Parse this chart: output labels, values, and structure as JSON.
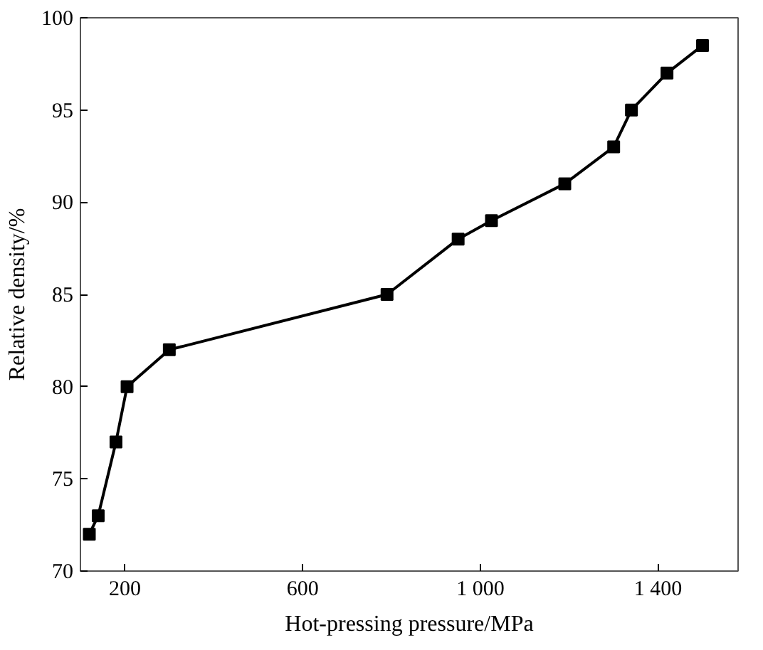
{
  "chart_data": {
    "type": "line",
    "xlabel": "Hot-pressing pressure/MPa",
    "ylabel": "Relative density/%",
    "x": [
      120,
      140,
      180,
      205,
      300,
      790,
      950,
      1025,
      1190,
      1300,
      1340,
      1420,
      1500
    ],
    "series": [
      {
        "color": "#000000",
        "values": [
          72,
          73,
          77,
          80,
          82,
          85,
          88,
          89,
          91,
          93,
          95,
          97,
          98.5
        ]
      }
    ],
    "xlim": [
      100,
      1580
    ],
    "xticks": [
      200,
      600,
      {
        "value": 1000,
        "label": "1 000"
      },
      {
        "value": 1400,
        "label": "1 400"
      }
    ],
    "ylim": [
      70,
      100
    ],
    "yticks": [
      70,
      75,
      80,
      85,
      90,
      95,
      100
    ],
    "marker": "square",
    "line_style": "solid"
  }
}
